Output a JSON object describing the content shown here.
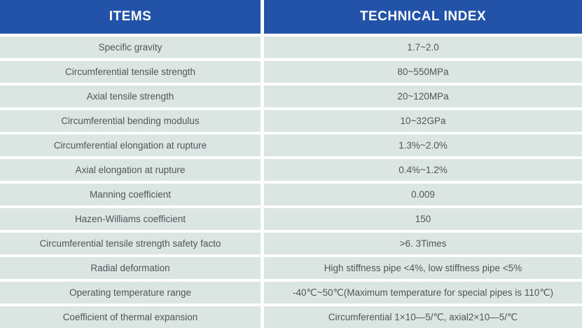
{
  "colors": {
    "header_bg": "#2253a8",
    "header_text": "#ffffff",
    "row_bg": "#dbe6e3",
    "body_text": "#505558",
    "gap_bg": "#ffffff"
  },
  "table": {
    "columns": [
      {
        "label": "ITEMS"
      },
      {
        "label": "TECHNICAL INDEX"
      }
    ],
    "rows": [
      {
        "item": "Specific gravity",
        "value": "1.7~2.0"
      },
      {
        "item": "Circumferential tensile strength",
        "value": "80~550MPa"
      },
      {
        "item": "Axial tensile strength",
        "value": "20~120MPa"
      },
      {
        "item": "Circumferential bending modulus",
        "value": "10~32GPa"
      },
      {
        "item": "Circumferential elongation at rupture",
        "value": "1.3%~2.0%"
      },
      {
        "item": "Axial elongation at rupture",
        "value": "0.4%~1.2%"
      },
      {
        "item": "Manning coefficient",
        "value": "0.009"
      },
      {
        "item": "Hazen-Williams coefficient",
        "value": "150"
      },
      {
        "item": "Circumferential tensile strength safety facto",
        "value": ">6. 3Times"
      },
      {
        "item": "Radial deformation",
        "value": "High stiffness pipe <4%, low stiffness pipe <5%"
      },
      {
        "item": "Operating temperature range",
        "value": "-40℃~50℃(Maximum temperature for special pipes is 110℃)"
      },
      {
        "item": "Coefficient of thermal expansion",
        "value": "Circumferential 1×10—5/℃, axial2×10—5/℃"
      }
    ]
  }
}
